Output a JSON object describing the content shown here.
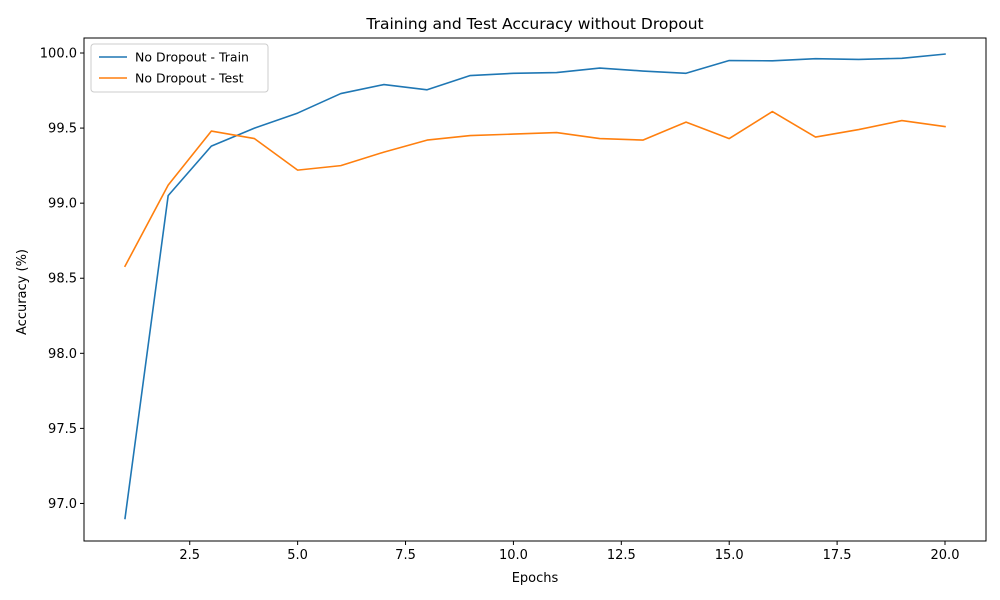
{
  "chart_data": {
    "type": "line",
    "title": "Training and Test Accuracy without Dropout",
    "xlabel": "Epochs",
    "ylabel": "Accuracy (%)",
    "xlim": [
      0.05,
      20.95
    ],
    "ylim": [
      96.75,
      100.1
    ],
    "xticks": [
      2.5,
      5.0,
      7.5,
      10.0,
      12.5,
      15.0,
      17.5,
      20.0
    ],
    "xtick_labels": [
      "2.5",
      "5.0",
      "7.5",
      "10.0",
      "12.5",
      "15.0",
      "17.5",
      "20.0"
    ],
    "yticks": [
      97.0,
      97.5,
      98.0,
      98.5,
      99.0,
      99.5,
      100.0
    ],
    "ytick_labels": [
      "97.0",
      "97.5",
      "98.0",
      "98.5",
      "99.0",
      "99.5",
      "100.0"
    ],
    "grid": false,
    "legend_position": "top-left",
    "x": [
      1,
      2,
      3,
      4,
      5,
      6,
      7,
      8,
      9,
      10,
      11,
      12,
      13,
      14,
      15,
      16,
      17,
      18,
      19,
      20
    ],
    "series": [
      {
        "name": "No Dropout - Train",
        "color": "#1f77b4",
        "values": [
          96.9,
          99.05,
          99.38,
          99.5,
          99.6,
          99.73,
          99.79,
          99.755,
          99.85,
          99.865,
          99.87,
          99.9,
          99.88,
          99.865,
          99.95,
          99.948,
          99.962,
          99.957,
          99.965,
          99.993
        ]
      },
      {
        "name": "No Dropout - Test",
        "color": "#ff7f0e",
        "values": [
          98.58,
          99.12,
          99.48,
          99.43,
          99.22,
          99.25,
          99.34,
          99.42,
          99.45,
          99.46,
          99.47,
          99.43,
          99.42,
          99.54,
          99.43,
          99.61,
          99.44,
          99.49,
          99.55,
          99.51
        ]
      }
    ]
  }
}
